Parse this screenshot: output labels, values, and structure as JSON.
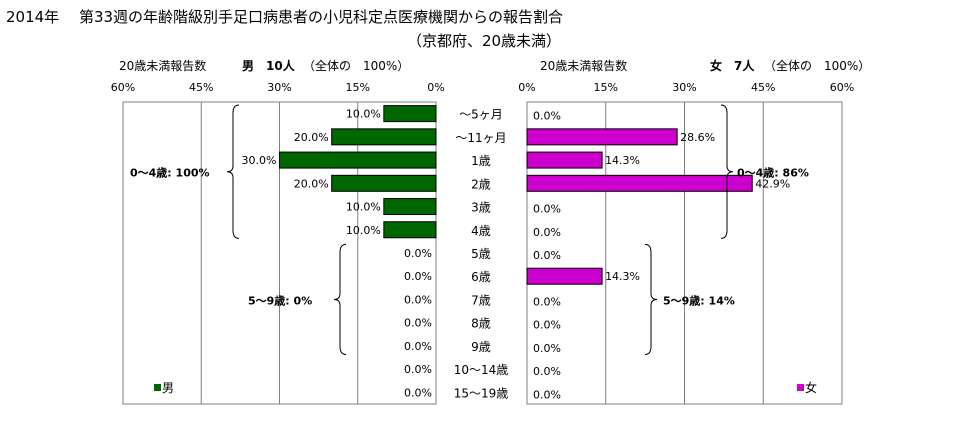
{
  "title_line1": "2014年　 第33週の年齢階級別手足口病患者の小児科定点医療機関からの報告割合",
  "title_line2": "（京都府、20歳未満）",
  "colors": {
    "male": "#006600",
    "female": "#cc00cc",
    "grid": "#808080",
    "border": "#808080"
  },
  "chart_data": [
    {
      "type": "bar",
      "orientation": "horizontal",
      "direction": "right-to-left",
      "header_label": "20歳未満報告数",
      "header_count": "男　10人",
      "header_total": "（全体の　100%）",
      "legend": "男",
      "series_color": "#006600",
      "xlim": [
        0,
        60
      ],
      "ticks": [
        "60%",
        "45%",
        "30%",
        "15%",
        "0%"
      ],
      "tick_values": [
        60,
        45,
        30,
        15,
        0
      ],
      "values": [
        10.0,
        20.0,
        30.0,
        20.0,
        10.0,
        10.0,
        0.0,
        0.0,
        0.0,
        0.0,
        0.0,
        0.0,
        0.0
      ],
      "value_labels": [
        "10.0%",
        "20.0%",
        "30.0%",
        "20.0%",
        "10.0%",
        "10.0%",
        "0.0%",
        "0.0%",
        "0.0%",
        "0.0%",
        "0.0%",
        "0.0%",
        "0.0%"
      ],
      "groups": [
        {
          "label": "0～4歳: 100%",
          "from": 0,
          "to": 5
        },
        {
          "label": "5～9歳: 0%",
          "from": 6,
          "to": 10
        }
      ]
    },
    {
      "type": "bar",
      "orientation": "horizontal",
      "direction": "left-to-right",
      "header_label": "20歳未満報告数",
      "header_count": "女　7人",
      "header_total": "（全体の　100%）",
      "legend": "女",
      "series_color": "#cc00cc",
      "xlim": [
        0,
        60
      ],
      "ticks": [
        "0%",
        "15%",
        "30%",
        "45%",
        "60%"
      ],
      "tick_values": [
        0,
        15,
        30,
        45,
        60
      ],
      "values": [
        0.0,
        28.6,
        14.3,
        42.9,
        0.0,
        0.0,
        0.0,
        14.3,
        0.0,
        0.0,
        0.0,
        0.0,
        0.0
      ],
      "value_labels": [
        "0.0%",
        "28.6%",
        "14.3%",
        "42.9%",
        "0.0%",
        "0.0%",
        "0.0%",
        "14.3%",
        "0.0%",
        "0.0%",
        "0.0%",
        "0.0%",
        "0.0%"
      ],
      "groups": [
        {
          "label": "0～4歳: 86%",
          "from": 0,
          "to": 5
        },
        {
          "label": "5～9歳: 14%",
          "from": 6,
          "to": 10
        }
      ]
    }
  ],
  "categories": [
    "～5ヶ月",
    "～11ヶ月",
    "1歳",
    "2歳",
    "3歳",
    "4歳",
    "5歳",
    "6歳",
    "7歳",
    "8歳",
    "9歳",
    "10～14歳",
    "15～19歳"
  ]
}
